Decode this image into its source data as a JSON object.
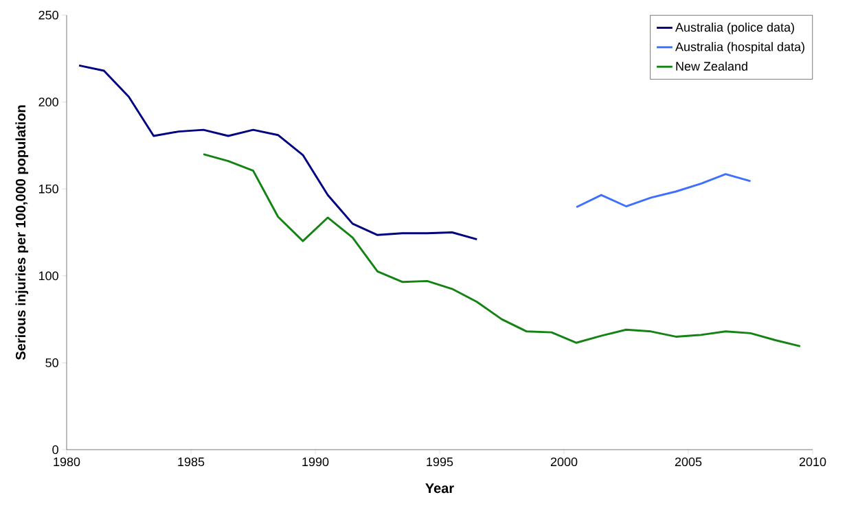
{
  "chart_data": {
    "type": "line",
    "xlabel": "Year",
    "ylabel": "Serious injuries per 100,000 population",
    "series": [
      {
        "name": "Australia (police data)",
        "color": "#000080",
        "x": [
          1980.5,
          1981.5,
          1982.5,
          1983.5,
          1984.5,
          1985.5,
          1986.5,
          1987.5,
          1988.5,
          1989.5,
          1990.5,
          1991.5,
          1992.5,
          1993.5,
          1994.5,
          1995.5,
          1996.5
        ],
        "values": [
          221,
          218,
          203,
          180.5,
          183,
          184,
          180.5,
          184,
          181,
          169.5,
          146.5,
          130,
          123.5,
          124.5,
          124.5,
          125,
          121
        ]
      },
      {
        "name": "Australia (hospital data)",
        "color": "#3f6fff",
        "x": [
          2000.5,
          2001.5,
          2002.5,
          2003.5,
          2004.5,
          2005.5,
          2006.5,
          2007.5
        ],
        "values": [
          139.5,
          146.5,
          140,
          145,
          148.5,
          153,
          158.5,
          154.5
        ]
      },
      {
        "name": "New Zealand",
        "color": "#138313",
        "x": [
          1985.5,
          1986.5,
          1987.5,
          1988.5,
          1989.5,
          1990.5,
          1991.5,
          1992.5,
          1993.5,
          1994.5,
          1995.5,
          1996.5,
          1997.5,
          1998.5,
          1999.5,
          2000.5,
          2001.5,
          2002.5,
          2003.5,
          2004.5,
          2005.5,
          2006.5,
          2007.5,
          2008.5,
          2009.5
        ],
        "values": [
          170,
          166,
          160.5,
          134,
          120,
          133.5,
          122,
          102.5,
          96.5,
          97,
          92.5,
          85,
          75,
          68,
          67.5,
          61.5,
          65.5,
          69,
          68,
          65,
          66,
          68,
          67,
          63,
          59.5
        ]
      }
    ],
    "xlim": [
      1980,
      2010
    ],
    "xticks": [
      1980,
      1985,
      1990,
      1995,
      2000,
      2005,
      2010
    ],
    "ylim": [
      0,
      250
    ],
    "yticks": [
      0,
      50,
      100,
      150,
      200,
      250
    ],
    "grid": false,
    "legend": "top right",
    "marker": "none",
    "line_style": "solid"
  }
}
